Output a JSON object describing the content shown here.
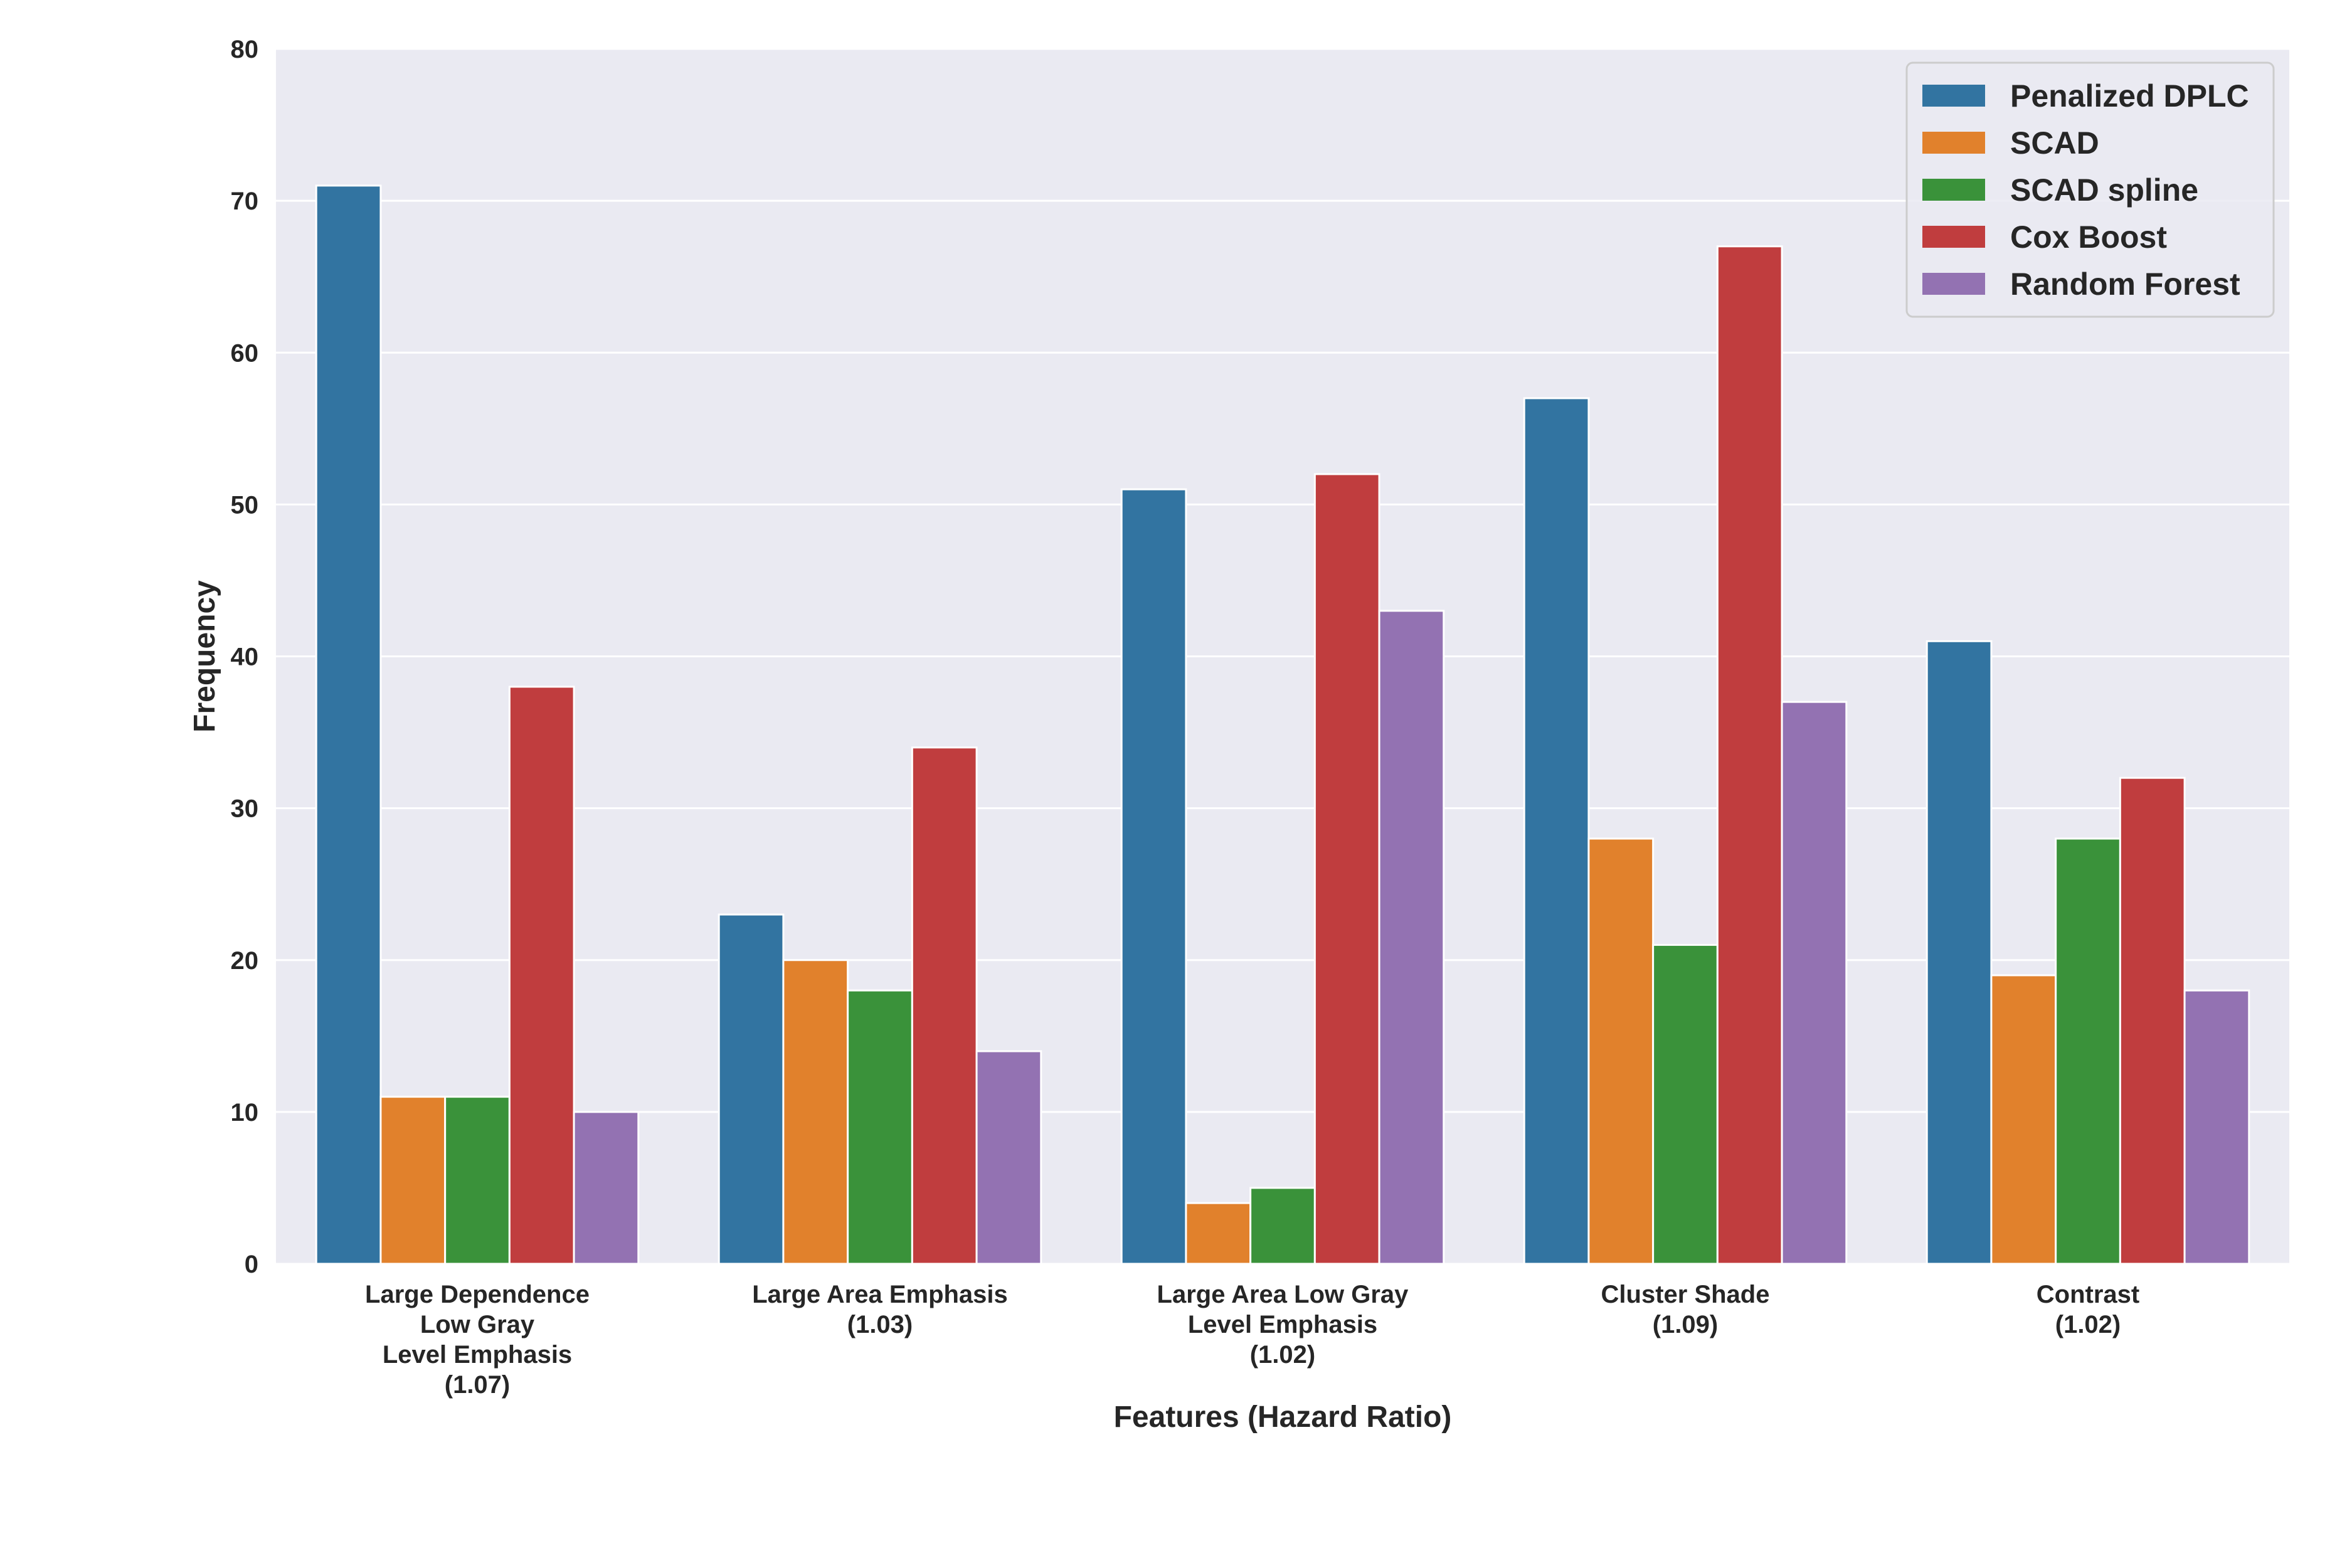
{
  "chart_data": {
    "type": "bar",
    "title": "",
    "xlabel": "Features (Hazard Ratio)",
    "ylabel": "Frequency",
    "ylim": [
      0,
      80
    ],
    "yticks": [
      0,
      10,
      20,
      30,
      40,
      50,
      60,
      70,
      80
    ],
    "grid": true,
    "legend_position": "top-right",
    "categories": [
      [
        "Large Dependence",
        "Low Gray",
        "Level Emphasis",
        "(1.07)"
      ],
      [
        "Large Area Emphasis",
        "(1.03)"
      ],
      [
        "Large Area Low Gray",
        "Level Emphasis",
        "(1.02)"
      ],
      [
        "Cluster Shade",
        "(1.09)"
      ],
      [
        "Contrast",
        "(1.02)"
      ]
    ],
    "series": [
      {
        "name": "Penalized DPLC",
        "color": "#3274a1",
        "values": [
          71,
          23,
          51,
          57,
          41
        ]
      },
      {
        "name": "SCAD",
        "color": "#e1812c",
        "values": [
          11,
          20,
          4,
          28,
          19
        ]
      },
      {
        "name": "SCAD spline",
        "color": "#3a923a",
        "values": [
          11,
          18,
          5,
          21,
          28
        ]
      },
      {
        "name": "Cox Boost",
        "color": "#c03d3e",
        "values": [
          38,
          34,
          52,
          67,
          32
        ]
      },
      {
        "name": "Random Forest",
        "color": "#9372b2",
        "values": [
          10,
          14,
          43,
          37,
          18
        ]
      }
    ],
    "background_color": "#eaeaf2",
    "grid_color": "#ffffff"
  }
}
